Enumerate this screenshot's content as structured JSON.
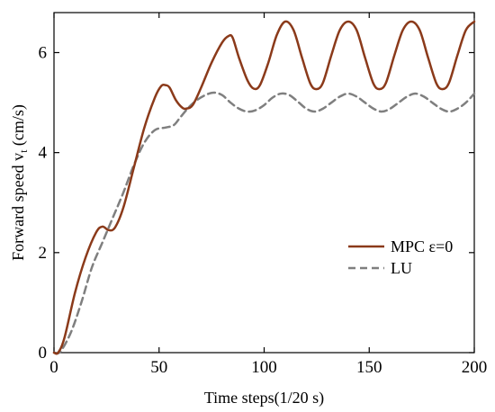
{
  "chart_data": {
    "type": "line",
    "xlabel": "Time steps(1/20 s)",
    "ylabel": "Forward speed v",
    "ylabel_sub": "t",
    "ylabel_unit": " (cm/s)",
    "xlim": [
      0,
      200
    ],
    "ylim": [
      0,
      6.8
    ],
    "xticks": [
      0,
      50,
      100,
      150,
      200
    ],
    "yticks": [
      0,
      2,
      4,
      6
    ],
    "grid": false,
    "legend_position": "right-middle",
    "series": [
      {
        "name": "MPC ε=0",
        "color": "#8b3a1a",
        "style": "solid",
        "points": [
          [
            0,
            0
          ],
          [
            2,
            0
          ],
          [
            5,
            0.3
          ],
          [
            10,
            1.2
          ],
          [
            15,
            1.9
          ],
          [
            20,
            2.4
          ],
          [
            23,
            2.52
          ],
          [
            26,
            2.45
          ],
          [
            29,
            2.5
          ],
          [
            33,
            2.9
          ],
          [
            38,
            3.7
          ],
          [
            43,
            4.5
          ],
          [
            48,
            5.1
          ],
          [
            51,
            5.33
          ],
          [
            53,
            5.35
          ],
          [
            55,
            5.3
          ],
          [
            58,
            5.05
          ],
          [
            61,
            4.9
          ],
          [
            63,
            4.88
          ],
          [
            66,
            4.95
          ],
          [
            70,
            5.3
          ],
          [
            75,
            5.8
          ],
          [
            80,
            6.2
          ],
          [
            83,
            6.33
          ],
          [
            85,
            6.3
          ],
          [
            88,
            5.9
          ],
          [
            92,
            5.45
          ],
          [
            95,
            5.28
          ],
          [
            98,
            5.35
          ],
          [
            102,
            5.8
          ],
          [
            106,
            6.35
          ],
          [
            110,
            6.62
          ],
          [
            114,
            6.45
          ],
          [
            118,
            5.9
          ],
          [
            122,
            5.38
          ],
          [
            125,
            5.27
          ],
          [
            128,
            5.4
          ],
          [
            132,
            5.95
          ],
          [
            136,
            6.45
          ],
          [
            140,
            6.62
          ],
          [
            144,
            6.45
          ],
          [
            148,
            5.9
          ],
          [
            152,
            5.38
          ],
          [
            155,
            5.27
          ],
          [
            158,
            5.4
          ],
          [
            162,
            5.95
          ],
          [
            166,
            6.45
          ],
          [
            170,
            6.62
          ],
          [
            174,
            6.45
          ],
          [
            178,
            5.9
          ],
          [
            182,
            5.38
          ],
          [
            185,
            5.27
          ],
          [
            188,
            5.4
          ],
          [
            192,
            5.95
          ],
          [
            196,
            6.45
          ],
          [
            200,
            6.62
          ]
        ]
      },
      {
        "name": "LU",
        "color": "#7f7f7f",
        "style": "dashed",
        "points": [
          [
            0,
            0
          ],
          [
            3,
            0.02
          ],
          [
            8,
            0.4
          ],
          [
            13,
            1.0
          ],
          [
            18,
            1.7
          ],
          [
            23,
            2.2
          ],
          [
            28,
            2.7
          ],
          [
            33,
            3.2
          ],
          [
            38,
            3.75
          ],
          [
            43,
            4.2
          ],
          [
            48,
            4.45
          ],
          [
            53,
            4.5
          ],
          [
            57,
            4.55
          ],
          [
            60,
            4.7
          ],
          [
            64,
            4.9
          ],
          [
            68,
            5.05
          ],
          [
            72,
            5.15
          ],
          [
            76,
            5.2
          ],
          [
            80,
            5.15
          ],
          [
            84,
            5.0
          ],
          [
            88,
            4.88
          ],
          [
            92,
            4.82
          ],
          [
            96,
            4.85
          ],
          [
            100,
            4.95
          ],
          [
            104,
            5.1
          ],
          [
            108,
            5.18
          ],
          [
            112,
            5.15
          ],
          [
            116,
            5.02
          ],
          [
            120,
            4.88
          ],
          [
            124,
            4.82
          ],
          [
            128,
            4.88
          ],
          [
            132,
            5.0
          ],
          [
            136,
            5.12
          ],
          [
            140,
            5.18
          ],
          [
            144,
            5.12
          ],
          [
            148,
            5.0
          ],
          [
            152,
            4.88
          ],
          [
            156,
            4.82
          ],
          [
            160,
            4.88
          ],
          [
            164,
            5.0
          ],
          [
            168,
            5.12
          ],
          [
            172,
            5.18
          ],
          [
            176,
            5.12
          ],
          [
            180,
            5.0
          ],
          [
            184,
            4.88
          ],
          [
            188,
            4.82
          ],
          [
            192,
            4.88
          ],
          [
            196,
            5.0
          ],
          [
            200,
            5.18
          ]
        ]
      }
    ]
  }
}
